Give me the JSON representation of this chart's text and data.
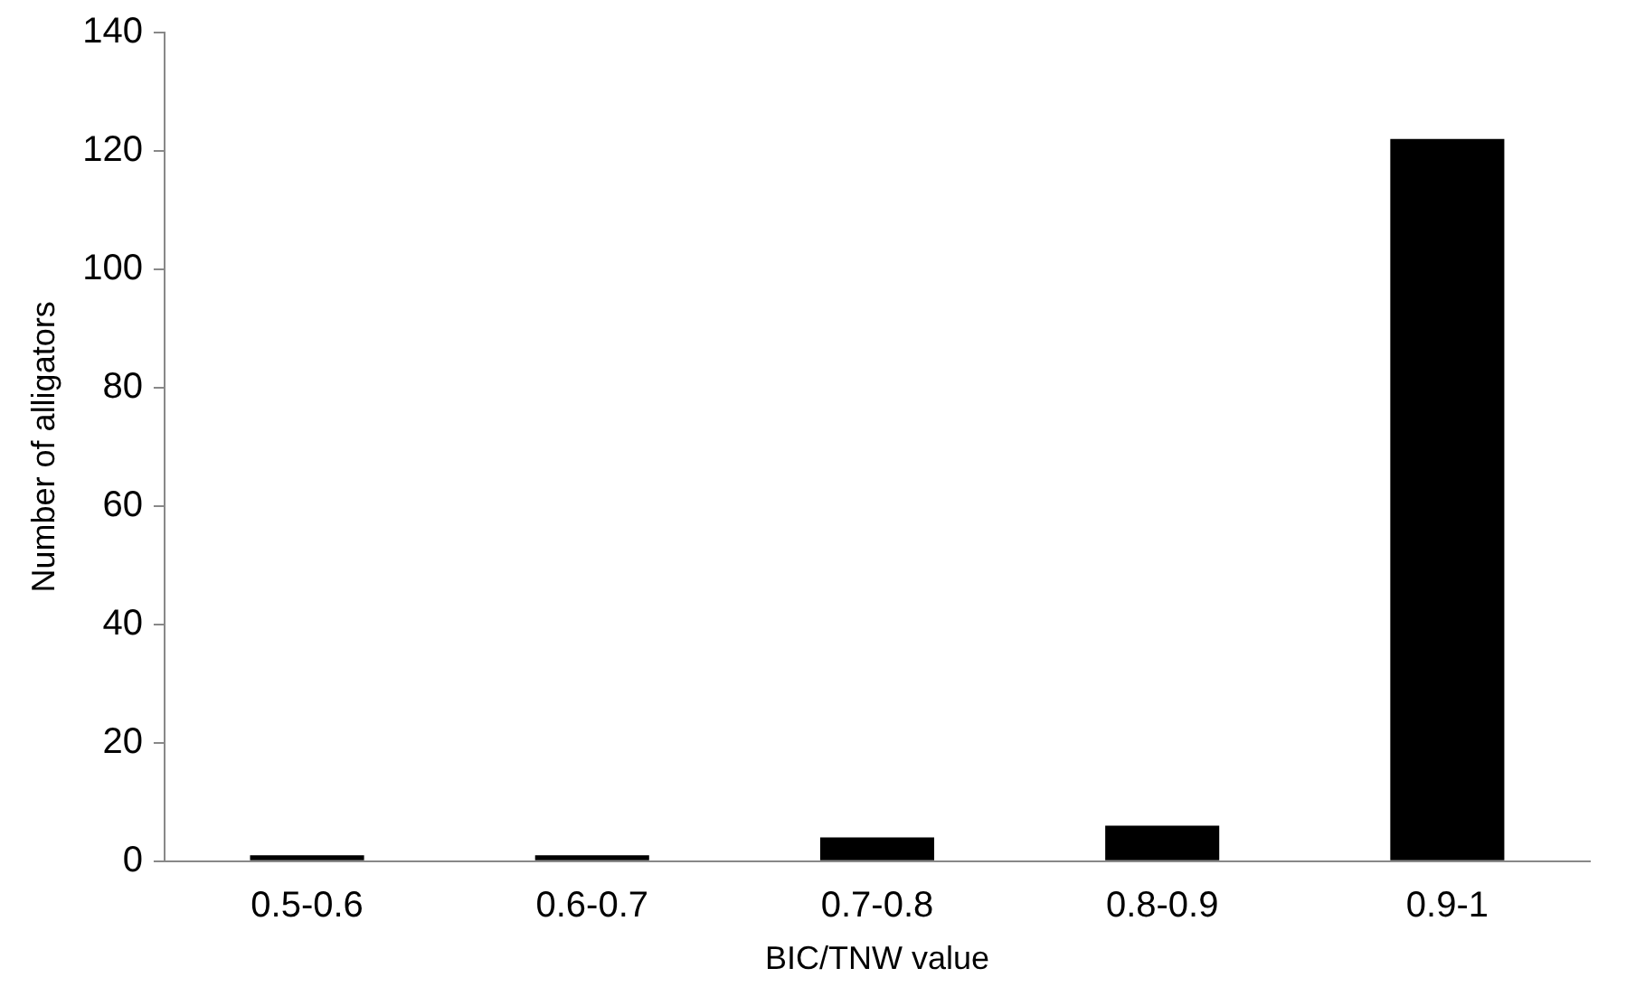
{
  "chart_data": {
    "type": "bar",
    "xlabel": "BIC/TNW value",
    "ylabel": "Number of alligators",
    "categories": [
      "0.5-0.6",
      "0.6-0.7",
      "0.7-0.8",
      "0.8-0.9",
      "0.9-1"
    ],
    "values": [
      1,
      1,
      4,
      6,
      122
    ],
    "color": "#000000",
    "ylim": [
      0,
      140
    ],
    "yticks": [
      0,
      20,
      40,
      60,
      80,
      100,
      120,
      140
    ],
    "grid": false,
    "legend": false
  }
}
